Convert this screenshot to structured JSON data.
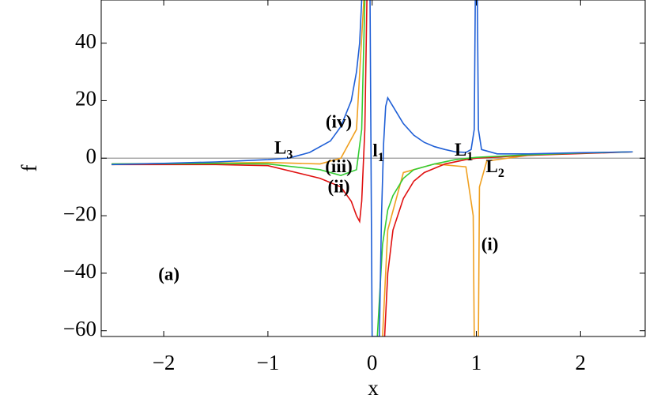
{
  "chart_data": {
    "type": "line",
    "xlabel": "x",
    "ylabel": "f",
    "xlim": [
      -2.6,
      2.62
    ],
    "ylim": [
      -62,
      55
    ],
    "xticks": [
      {
        "value": -2,
        "label": "−2"
      },
      {
        "value": -1,
        "label": "−1"
      },
      0,
      1,
      2
    ],
    "yticks": [
      {
        "value": -60,
        "label": "−60"
      },
      {
        "value": -40,
        "label": "−40"
      },
      {
        "value": -20,
        "label": "−20"
      },
      0,
      20,
      40
    ],
    "zero_line": true,
    "series": [
      {
        "color": "#f0a020",
        "x": [
          -2.5,
          -1.5,
          -1,
          -0.5,
          -0.3,
          -0.15,
          -0.08,
          0,
          0.1,
          0.15,
          0.3,
          0.6,
          0.9,
          0.97,
          0.98,
          1,
          1.02,
          1.03,
          1.1,
          1.5,
          2,
          2.5
        ],
        "values": [
          -2,
          -1.7,
          -1.5,
          -2,
          0,
          10,
          55,
          null,
          -62,
          -25,
          -5,
          -2,
          -3,
          -20,
          -62,
          null,
          -62,
          -10,
          -1,
          1,
          1.8,
          2.2
        ]
      },
      {
        "color": "#e01010",
        "x": [
          -2.5,
          -1.5,
          -1,
          -0.5,
          -0.3,
          -0.2,
          -0.15,
          -0.12,
          -0.1,
          -0.07,
          -0.05,
          0,
          0.12,
          0.15,
          0.2,
          0.3,
          0.4,
          0.5,
          0.7,
          0.9,
          1,
          1.5,
          2,
          2.5
        ],
        "values": [
          -2.2,
          -2.2,
          -2.6,
          -7,
          -10,
          -15,
          -20,
          -22,
          -15,
          10,
          55,
          null,
          -62,
          -40,
          -25,
          -14,
          -8,
          -5,
          -2,
          -0.5,
          0,
          1,
          1.6,
          2.2
        ]
      },
      {
        "color": "#33cc33",
        "x": [
          -2.5,
          -1.5,
          -1,
          -0.5,
          -0.3,
          -0.15,
          -0.1,
          -0.07,
          0,
          0.05,
          0.1,
          0.15,
          0.2,
          0.3,
          0.4,
          0.6,
          0.8,
          1,
          1.5,
          2,
          2.5
        ],
        "values": [
          -2,
          -1.8,
          -2,
          -4,
          -6,
          -4,
          10,
          55,
          null,
          -62,
          -30,
          -18,
          -13,
          -7,
          -4,
          -2,
          -0.5,
          0.3,
          1.2,
          1.8,
          2.2
        ]
      },
      {
        "color": "#1f5fd6",
        "x": [
          -2.5,
          -2,
          -1.5,
          -1,
          -0.8,
          -0.6,
          -0.4,
          -0.3,
          -0.2,
          -0.15,
          -0.12,
          -0.1,
          -0.05,
          -0.02,
          0,
          0.07,
          0.09,
          0.11,
          0.13,
          0.15,
          0.2,
          0.3,
          0.4,
          0.5,
          0.6,
          0.7,
          0.8,
          0.9,
          0.95,
          0.98,
          0.99,
          1,
          1.01,
          1.02,
          1.05,
          1.2,
          1.5,
          2,
          2.5
        ],
        "values": [
          -2.2,
          -1.8,
          -1.3,
          -0.5,
          0,
          2,
          6,
          11,
          20,
          30,
          40,
          55,
          null,
          55,
          -62,
          -62,
          -20,
          5,
          18,
          21,
          18,
          12,
          8,
          5.5,
          4,
          3,
          2.2,
          2,
          3,
          10,
          55,
          null,
          55,
          10,
          3,
          1.5,
          1.5,
          1.9,
          2.2
        ]
      }
    ],
    "annotations": [
      {
        "text": "(a)",
        "x": -1.95,
        "y": -41
      },
      {
        "text": "(i)",
        "x": 1.13,
        "y": -30.5
      },
      {
        "text": "(ii)",
        "x": -0.32,
        "y": -10.5
      },
      {
        "text": "(iii)",
        "x": -0.32,
        "y": -3.5
      },
      {
        "text": "(iv)",
        "x": -0.32,
        "y": 12
      },
      {
        "text": "L",
        "sub": "3",
        "x": -0.85,
        "y": 3
      },
      {
        "text": "l",
        "sub": "1",
        "x": 0.06,
        "y": 2
      },
      {
        "text": "L",
        "sub": "1",
        "x": 0.88,
        "y": 2.3
      },
      {
        "text": "L",
        "sub": "2",
        "x": 1.18,
        "y": -3.5
      }
    ]
  }
}
